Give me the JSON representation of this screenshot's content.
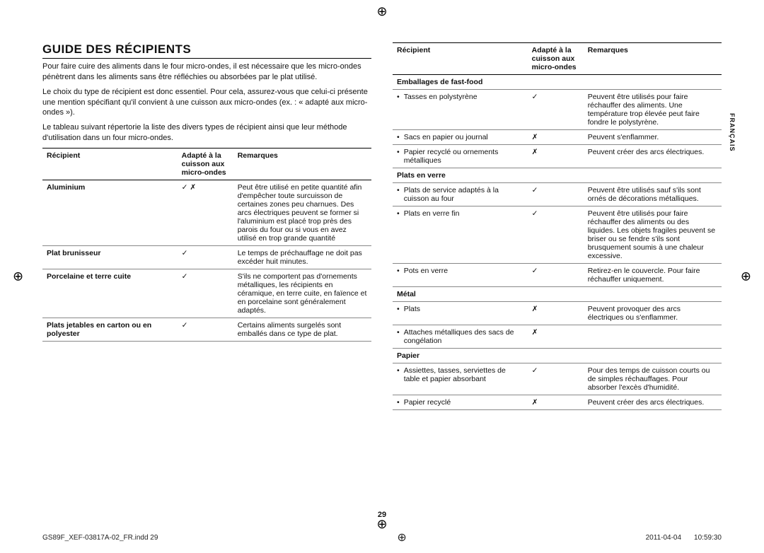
{
  "cropGlyph": "⊕",
  "sideLabel": "FRANÇAIS",
  "pageNumber": "29",
  "footer": {
    "file": "GS89F_XEF-03817A-02_FR.indd   29",
    "date": "2011-04-04",
    "time": "10:59:30"
  },
  "heading": "GUIDE DES RÉCIPIENTS",
  "intro": [
    "Pour faire cuire des aliments dans le four micro-ondes, il est nécessaire que les micro-ondes pénètrent dans les aliments sans être réfléchies ou absorbées par le plat utilisé.",
    "Le choix du type de récipient est donc essentiel. Pour cela, assurez-vous que celui-ci présente une mention spécifiant qu'il convient à une cuisson aux micro-ondes (ex. : « adapté aux micro-ondes »).",
    "Le tableau suivant répertorie la liste des divers types de récipient ainsi que leur méthode d'utilisation dans un four micro-ondes."
  ],
  "tableHeaders": {
    "c1": "Récipient",
    "c2": "Adapté à la cuisson aux micro-ondes",
    "c3": "Remarques"
  },
  "leftRows": [
    {
      "type": "item",
      "c1": "Aluminium",
      "bold": true,
      "c2": "✓ ✗",
      "c3": "Peut être utilisé en petite quantité afin d'empêcher toute surcuisson de certaines zones peu charnues. Des arcs électriques peuvent se former si l'aluminium est placé trop près des parois du four ou si vous en avez utilisé en trop grande quantité"
    },
    {
      "type": "item",
      "c1": "Plat brunisseur",
      "bold": true,
      "c2": "✓",
      "c3": "Le temps de préchauffage ne doit pas excéder huit minutes."
    },
    {
      "type": "item",
      "c1": "Porcelaine et terre cuite",
      "bold": true,
      "c2": "✓",
      "c3": "S'ils ne comportent pas d'ornements métalliques, les récipients en céramique, en terre cuite, en faïence et en porcelaine sont généralement adaptés."
    },
    {
      "type": "item",
      "c1": "Plats jetables en carton ou en polyester",
      "bold": true,
      "c2": "✓",
      "c3": "Certains aliments surgelés sont emballés dans ce type de plat."
    }
  ],
  "rightRows": [
    {
      "type": "section",
      "c1": "Emballages de fast-food"
    },
    {
      "type": "bullet",
      "c1": "Tasses en polystyrène",
      "c2": "✓",
      "c3": "Peuvent être utilisés pour faire réchauffer des aliments. Une température trop élevée peut faire fondre le polystyrène."
    },
    {
      "type": "bullet",
      "c1": "Sacs en papier ou journal",
      "c2": "✗",
      "c3": "Peuvent s'enflammer."
    },
    {
      "type": "bullet",
      "c1": "Papier recyclé ou ornements métalliques",
      "c2": "✗",
      "c3": "Peuvent créer des arcs électriques."
    },
    {
      "type": "section",
      "c1": "Plats en verre"
    },
    {
      "type": "bullet",
      "c1": "Plats de service adaptés à la cuisson au four",
      "c2": "✓",
      "c3": "Peuvent être utilisés sauf s'ils sont ornés de décorations métalliques."
    },
    {
      "type": "bullet",
      "c1": "Plats en verre fin",
      "c2": "✓",
      "c3": "Peuvent être utilisés pour faire réchauffer des aliments ou des liquides. Les objets fragiles peuvent se briser ou se fendre s'ils sont brusquement soumis à une chaleur excessive."
    },
    {
      "type": "bullet",
      "c1": "Pots en verre",
      "c2": "✓",
      "c3": "Retirez-en le couvercle. Pour faire réchauffer uniquement."
    },
    {
      "type": "section",
      "c1": "Métal"
    },
    {
      "type": "bullet",
      "c1": "Plats",
      "c2": "✗",
      "c3": "Peuvent provoquer des arcs électriques ou s'enflammer."
    },
    {
      "type": "bullet",
      "c1": "Attaches métalliques des sacs de congélation",
      "c2": "✗",
      "c3": ""
    },
    {
      "type": "section",
      "c1": "Papier"
    },
    {
      "type": "bullet",
      "c1": "Assiettes, tasses, serviettes de table et papier absorbant",
      "c2": "✓",
      "c3": "Pour des temps de cuisson courts ou de simples réchauffages. Pour absorber l'excès d'humidité."
    },
    {
      "type": "bullet",
      "c1": "Papier recyclé",
      "c2": "✗",
      "c3": "Peuvent créer des arcs électriques."
    }
  ]
}
